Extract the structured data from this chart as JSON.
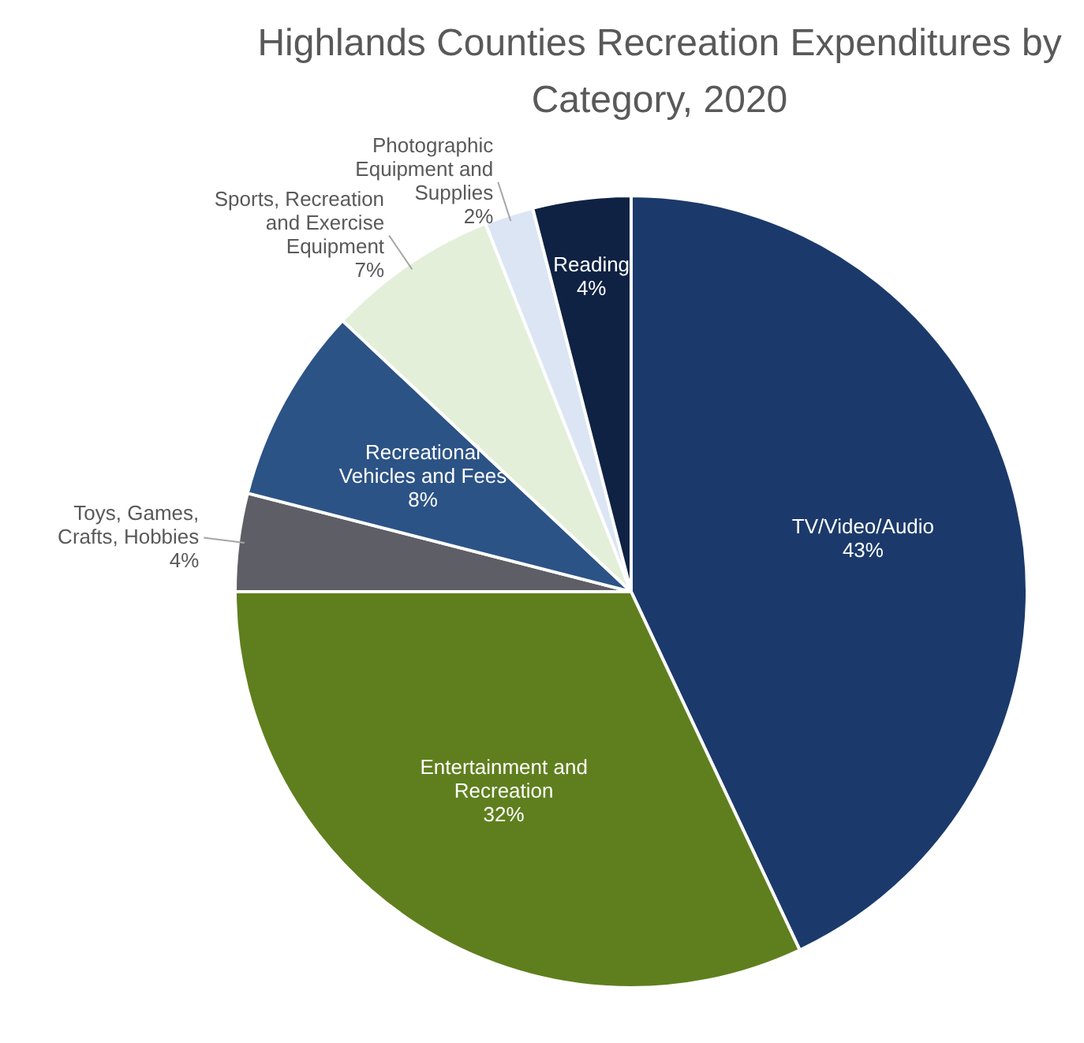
{
  "chart_data": {
    "type": "pie",
    "title": "Highlands Counties Recreation Expenditures by Category, 2020",
    "categories": [
      "TV/Video/Audio",
      "Entertainment and Recreation",
      "Toys, Games, Crafts, Hobbies",
      "Recreational Vehicles and Fees",
      "Sports, Recreation and Exercise Equipment",
      "Photographic Equipment and Supplies",
      "Reading"
    ],
    "values": [
      43,
      32,
      4,
      8,
      7,
      2,
      4
    ],
    "colors": [
      "#1b3a6b",
      "#5f7f1e",
      "#5e5e66",
      "#2c5386",
      "#e3efd9",
      "#dbe5f4",
      "#0f2243"
    ],
    "value_labels": [
      "43%",
      "32%",
      "4%",
      "8%",
      "7%",
      "2%",
      "4%"
    ],
    "legend": false
  }
}
